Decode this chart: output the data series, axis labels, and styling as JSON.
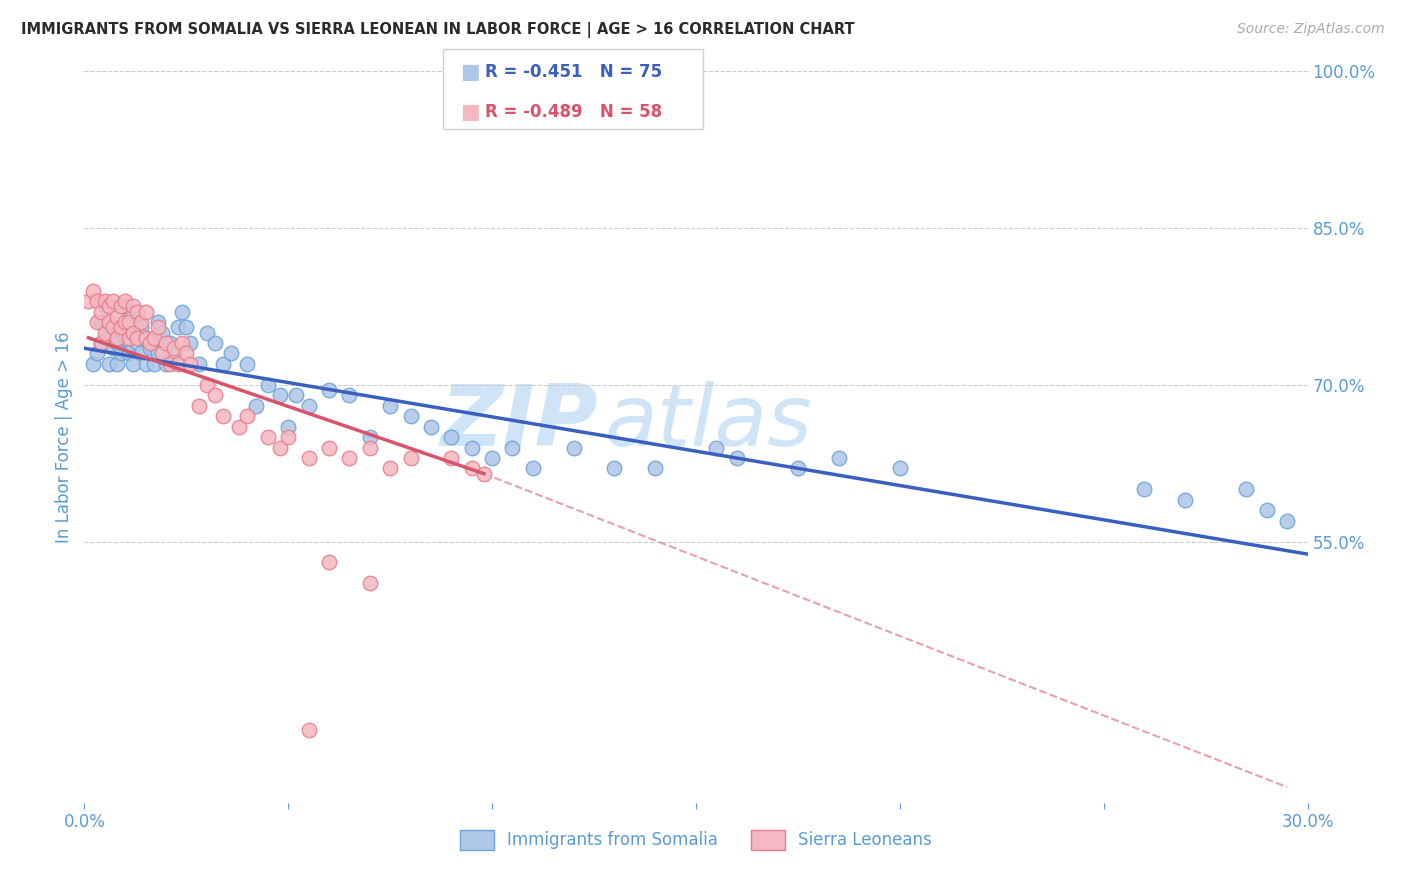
{
  "title": "IMMIGRANTS FROM SOMALIA VS SIERRA LEONEAN IN LABOR FORCE | AGE > 16 CORRELATION CHART",
  "source": "Source: ZipAtlas.com",
  "ylabel": "In Labor Force | Age > 16",
  "xlim": [
    0.0,
    0.3
  ],
  "ylim": [
    0.3,
    1.0
  ],
  "xticks": [
    0.0,
    0.05,
    0.1,
    0.15,
    0.2,
    0.25,
    0.3
  ],
  "xticklabels": [
    "0.0%",
    "",
    "",
    "",
    "",
    "",
    "30.0%"
  ],
  "ytick_positions": [
    0.55,
    0.7,
    0.85,
    1.0
  ],
  "ytick_labels": [
    "55.0%",
    "70.0%",
    "85.0%",
    "100.0%"
  ],
  "grid_color": "#cccccc",
  "background_color": "#ffffff",
  "somalia_color": "#aec6e8",
  "somalia_edge_color": "#6aa3d5",
  "sierra_color": "#f4b8c1",
  "sierra_edge_color": "#e87c8a",
  "somalia_line_color": "#3a5fbe",
  "sierra_line_color": "#d9536a",
  "dashed_line_color": "#e8a0aa",
  "legend_R_somalia": "R = -0.451",
  "legend_N_somalia": "N = 75",
  "legend_R_sierra": "R = -0.489",
  "legend_N_sierra": "N = 58",
  "watermark_zip": "ZIP",
  "watermark_atlas": "atlas",
  "watermark_color": "#d0e4f7",
  "tick_color": "#5b9bd5",
  "somalia_line_x": [
    0.0,
    0.3
  ],
  "somalia_line_y": [
    0.735,
    0.538
  ],
  "sierra_line_x": [
    0.001,
    0.098
  ],
  "sierra_line_y": [
    0.745,
    0.615
  ],
  "dashed_line_x": [
    0.098,
    0.295
  ],
  "dashed_line_y": [
    0.615,
    0.315
  ],
  "somalia_scatter_x": [
    0.002,
    0.003,
    0.004,
    0.004,
    0.005,
    0.005,
    0.006,
    0.006,
    0.007,
    0.007,
    0.008,
    0.008,
    0.009,
    0.009,
    0.01,
    0.01,
    0.01,
    0.011,
    0.011,
    0.012,
    0.012,
    0.013,
    0.013,
    0.014,
    0.014,
    0.015,
    0.015,
    0.016,
    0.017,
    0.018,
    0.018,
    0.019,
    0.02,
    0.021,
    0.022,
    0.023,
    0.024,
    0.025,
    0.026,
    0.028,
    0.03,
    0.032,
    0.034,
    0.036,
    0.04,
    0.042,
    0.045,
    0.048,
    0.05,
    0.052,
    0.055,
    0.06,
    0.065,
    0.07,
    0.075,
    0.08,
    0.085,
    0.09,
    0.095,
    0.1,
    0.105,
    0.11,
    0.12,
    0.13,
    0.14,
    0.155,
    0.16,
    0.175,
    0.185,
    0.2,
    0.26,
    0.27,
    0.285,
    0.29,
    0.295
  ],
  "somalia_scatter_y": [
    0.72,
    0.73,
    0.74,
    0.76,
    0.745,
    0.775,
    0.72,
    0.75,
    0.735,
    0.755,
    0.72,
    0.74,
    0.73,
    0.755,
    0.745,
    0.76,
    0.775,
    0.73,
    0.755,
    0.76,
    0.72,
    0.74,
    0.76,
    0.73,
    0.755,
    0.72,
    0.745,
    0.735,
    0.72,
    0.76,
    0.73,
    0.75,
    0.72,
    0.74,
    0.73,
    0.755,
    0.77,
    0.755,
    0.74,
    0.72,
    0.75,
    0.74,
    0.72,
    0.73,
    0.72,
    0.68,
    0.7,
    0.69,
    0.66,
    0.69,
    0.68,
    0.695,
    0.69,
    0.65,
    0.68,
    0.67,
    0.66,
    0.65,
    0.64,
    0.63,
    0.64,
    0.62,
    0.64,
    0.62,
    0.62,
    0.64,
    0.63,
    0.62,
    0.63,
    0.62,
    0.6,
    0.59,
    0.6,
    0.58,
    0.57
  ],
  "sierra_scatter_x": [
    0.001,
    0.002,
    0.003,
    0.003,
    0.004,
    0.004,
    0.005,
    0.005,
    0.006,
    0.006,
    0.007,
    0.007,
    0.008,
    0.008,
    0.009,
    0.009,
    0.01,
    0.01,
    0.011,
    0.011,
    0.012,
    0.012,
    0.013,
    0.013,
    0.014,
    0.015,
    0.015,
    0.016,
    0.017,
    0.018,
    0.019,
    0.02,
    0.021,
    0.022,
    0.023,
    0.024,
    0.025,
    0.026,
    0.028,
    0.03,
    0.032,
    0.034,
    0.038,
    0.04,
    0.045,
    0.048,
    0.05,
    0.055,
    0.06,
    0.065,
    0.07,
    0.075,
    0.08,
    0.09,
    0.095,
    0.098,
    0.06,
    0.07
  ],
  "sierra_scatter_y": [
    0.78,
    0.79,
    0.76,
    0.78,
    0.74,
    0.77,
    0.75,
    0.78,
    0.76,
    0.775,
    0.755,
    0.78,
    0.745,
    0.765,
    0.755,
    0.775,
    0.76,
    0.78,
    0.745,
    0.76,
    0.75,
    0.775,
    0.745,
    0.77,
    0.76,
    0.745,
    0.77,
    0.74,
    0.745,
    0.755,
    0.73,
    0.74,
    0.72,
    0.735,
    0.72,
    0.74,
    0.73,
    0.72,
    0.68,
    0.7,
    0.69,
    0.67,
    0.66,
    0.67,
    0.65,
    0.64,
    0.65,
    0.63,
    0.64,
    0.63,
    0.64,
    0.62,
    0.63,
    0.63,
    0.62,
    0.615,
    0.53,
    0.51
  ],
  "sierra_outlier_x": [
    0.055
  ],
  "sierra_outlier_y": [
    0.37
  ]
}
